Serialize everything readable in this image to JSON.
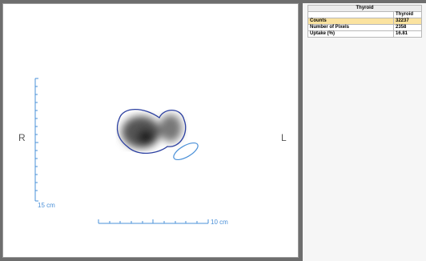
{
  "viewer": {
    "right_label": "R",
    "left_label": "L",
    "vertical_scale": "15 cm",
    "horizontal_scale": "10 cm"
  },
  "table": {
    "title": "Thyroid",
    "column": "Thyroid",
    "rows": [
      [
        "Counts",
        "32237"
      ],
      [
        "Number of Pixels",
        "2358"
      ],
      [
        "Uptake (%)",
        "16.81"
      ]
    ]
  }
}
